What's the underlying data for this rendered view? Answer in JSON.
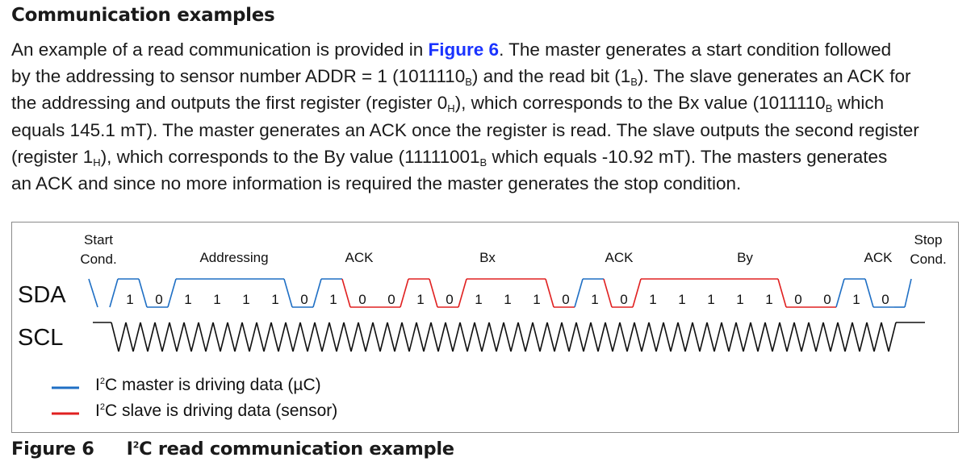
{
  "section": {
    "heading": "Communication examples"
  },
  "paragraph": {
    "l1_a": "An example of a read communication is provided in ",
    "l1_link": "Figure 6",
    "l1_b": ". The master generates a start condition followed",
    "l2_a": "by the addressing to sensor number ADDR = 1 (1011110",
    "l2_sub1": "B",
    "l2_b": ") and the read bit (1",
    "l2_sub2": "B",
    "l2_c": "). The slave generates an ACK for",
    "l3_a": "the addressing and outputs the first register (register 0",
    "l3_sub1": "H",
    "l3_b": "), which corresponds to the Bx value (1011110",
    "l3_sub2": "B",
    "l3_c": " which",
    "l4": "equals 145.1 mT). The master generates an ACK once the register is read. The slave outputs the second register",
    "l5_a": "(register 1",
    "l5_sub1": "H",
    "l5_b": "), which corresponds to the By value (11111001",
    "l5_sub2": "B",
    "l5_c": " which equals -10.92 mT). The masters generates",
    "l6": "an ACK and since no more information is required the master generates the stop condition."
  },
  "diagram": {
    "phase_labels": {
      "start_line1": "Start",
      "start_line2": "Cond.",
      "addressing": "Addressing",
      "ack1": "ACK",
      "bx": "Bx",
      "ack2": "ACK",
      "by": "By",
      "ack3": "ACK",
      "stop_line1": "Stop",
      "stop_line2": "Cond."
    },
    "signals": {
      "sda": "SDA",
      "scl": "SCL"
    },
    "bits": [
      "1",
      "0",
      "1",
      "1",
      "1",
      "1",
      "0",
      "1",
      "0",
      "0",
      "1",
      "0",
      "1",
      "1",
      "1",
      "0",
      "1",
      "0",
      "1",
      "1",
      "1",
      "1",
      "1",
      "0",
      "0",
      "1",
      "0"
    ],
    "bit_driver": [
      "m",
      "m",
      "m",
      "m",
      "m",
      "m",
      "m",
      "m",
      "s",
      "s",
      "s",
      "s",
      "s",
      "s",
      "s",
      "s",
      "m",
      "s",
      "s",
      "s",
      "s",
      "s",
      "s",
      "s",
      "s",
      "m",
      "m"
    ],
    "legend": {
      "master_pre": "I",
      "master_sup": "2",
      "master_post": "C master is driving data (µC)",
      "slave_pre": "I",
      "slave_sup": "2",
      "slave_post": "C slave is driving data (sensor)"
    },
    "colors": {
      "master": "#1f6fc4",
      "slave": "#e02020",
      "clock": "#111111"
    }
  },
  "caption": {
    "label": "Figure 6",
    "title_pre": "I",
    "title_sup": "2",
    "title_post": "C read communication example"
  }
}
